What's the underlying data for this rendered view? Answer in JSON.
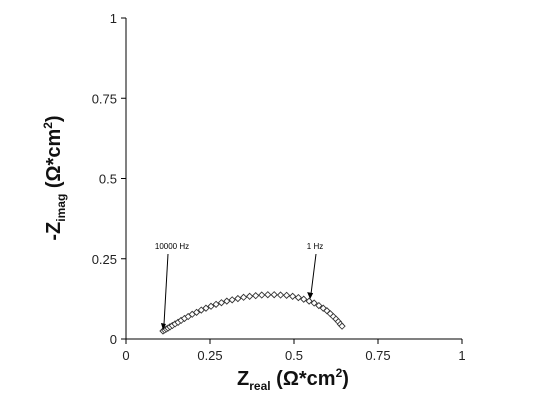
{
  "chart_data": {
    "type": "scatter",
    "xlabel": {
      "main": "Z",
      "sub": "real",
      "rest": " (Ω*cm",
      "sup": "2",
      "close": ")"
    },
    "ylabel": {
      "main": "-Z",
      "sub": "imag",
      "rest": " (Ω*cm",
      "sup": "2",
      "close": ")"
    },
    "xlim": [
      0,
      1
    ],
    "ylim": [
      0,
      1
    ],
    "x_ticks": [
      "0",
      "0.25",
      "0.5",
      "0.75",
      "1"
    ],
    "y_ticks": [
      "0",
      "0.25",
      "0.5",
      "0.75",
      "1"
    ],
    "marker": "open-diamond",
    "grid": false,
    "legend": "none",
    "series": [
      {
        "x": [
          0.11,
          0.115,
          0.12,
          0.125,
          0.131,
          0.138,
          0.146,
          0.155,
          0.164,
          0.174,
          0.185,
          0.197,
          0.21,
          0.224,
          0.238,
          0.253,
          0.268,
          0.284,
          0.3,
          0.316,
          0.333,
          0.35,
          0.368,
          0.386,
          0.404,
          0.422,
          0.441,
          0.46,
          0.478,
          0.496,
          0.513,
          0.529,
          0.545,
          0.56,
          0.574,
          0.587,
          0.598,
          0.608,
          0.617,
          0.625,
          0.632,
          0.638,
          0.643
        ],
        "y": [
          0.025,
          0.028,
          0.031,
          0.034,
          0.038,
          0.042,
          0.047,
          0.052,
          0.058,
          0.064,
          0.07,
          0.077,
          0.083,
          0.09,
          0.096,
          0.102,
          0.108,
          0.113,
          0.118,
          0.122,
          0.126,
          0.13,
          0.133,
          0.135,
          0.137,
          0.138,
          0.138,
          0.137,
          0.136,
          0.133,
          0.129,
          0.124,
          0.118,
          0.112,
          0.104,
          0.096,
          0.088,
          0.079,
          0.07,
          0.062,
          0.054,
          0.046,
          0.04
        ]
      }
    ],
    "annotations": [
      {
        "text": "10000 Hz",
        "x": 0.11,
        "y": 0.025
      },
      {
        "text": "1 Hz",
        "x": 0.545,
        "y": 0.118
      }
    ]
  }
}
